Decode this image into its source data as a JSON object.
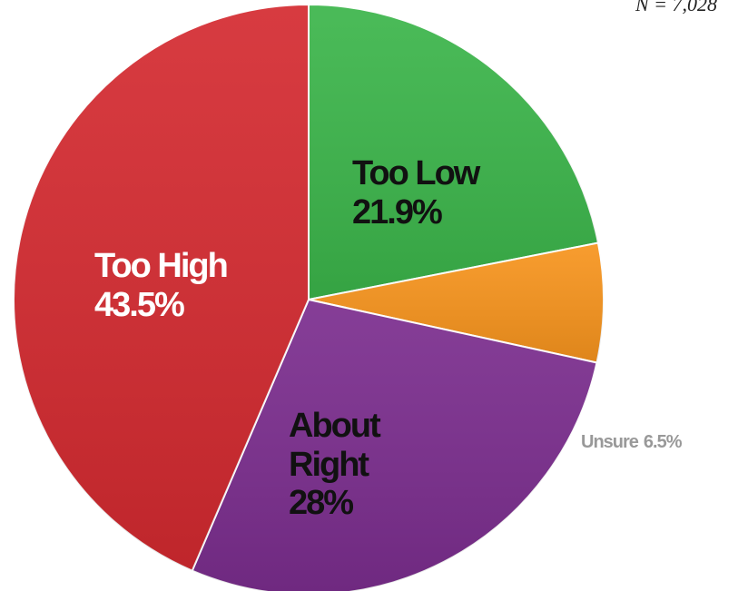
{
  "chart_data": {
    "type": "pie",
    "annotation": "N = 7,028",
    "categories": [
      "Too Low",
      "Unsure",
      "About Right",
      "Too High"
    ],
    "values": [
      21.9,
      6.5,
      28,
      43.5
    ],
    "value_labels": [
      "21.9%",
      "6.5%",
      "28%",
      "43.5%"
    ],
    "colors": [
      "#3bb54a",
      "#f7941d",
      "#7b2d8e",
      "#d42a30"
    ]
  }
}
